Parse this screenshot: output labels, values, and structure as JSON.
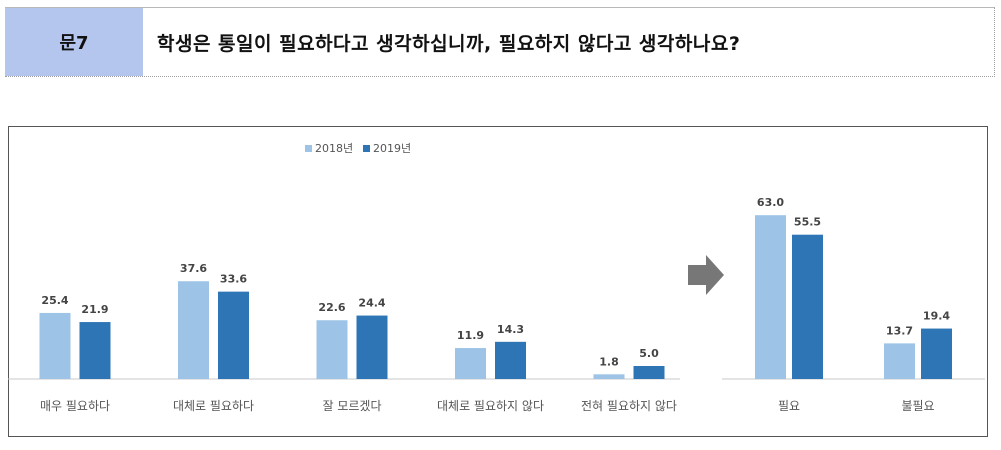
{
  "question": {
    "number": "문7",
    "text": "학생은 통일이 필요하다고 생각하십니까, 필요하지 않다고 생각하나요?"
  },
  "colors": {
    "s2018": "#9dc3e6",
    "s2019": "#2e75b6",
    "arrow": "#777777",
    "axis": "#c8c8c8"
  },
  "chart_data": [
    {
      "type": "bar",
      "categories": [
        "매우 필요하다",
        "대체로 필요하다",
        "잘 모르겠다",
        "대체로 필요하지 않다",
        "전혀 필요하지 않다"
      ],
      "series": [
        {
          "name": "2018년",
          "values": [
            25.4,
            37.6,
            22.6,
            11.9,
            1.8
          ]
        },
        {
          "name": "2019년",
          "values": [
            21.9,
            33.6,
            24.4,
            14.3,
            5.0
          ]
        }
      ],
      "legend": "top-center"
    },
    {
      "type": "bar",
      "categories": [
        "필요",
        "불필요"
      ],
      "series": [
        {
          "name": "2018년",
          "values": [
            63.0,
            13.7
          ]
        },
        {
          "name": "2019년",
          "values": [
            55.5,
            19.4
          ]
        }
      ]
    }
  ]
}
